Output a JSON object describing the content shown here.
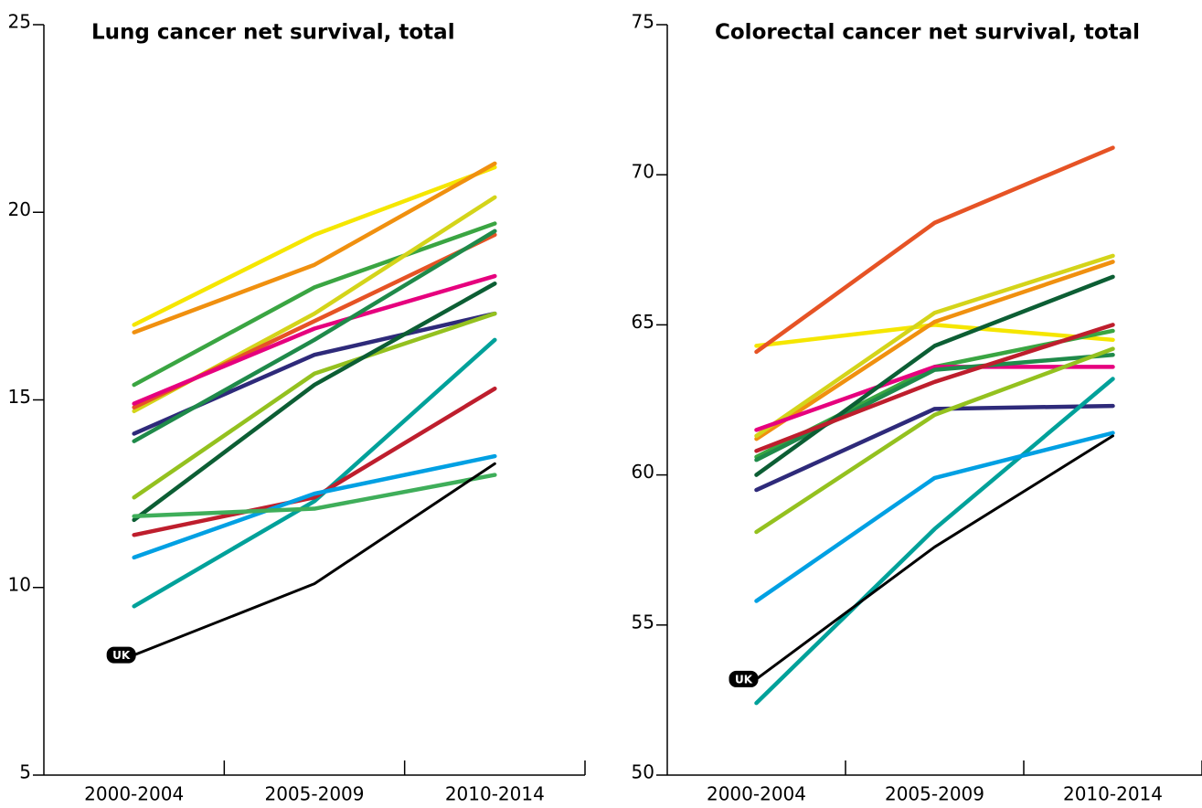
{
  "chart_data": [
    {
      "type": "line",
      "title": "Lung cancer net survival, total",
      "categories": [
        "2000-2004",
        "2005-2009",
        "2010-2014"
      ],
      "ylim": [
        5,
        25
      ],
      "yticks": [
        5,
        10,
        15,
        20,
        25
      ],
      "series": [
        {
          "color": "#f5e600",
          "values": [
            17.0,
            19.4,
            21.2
          ]
        },
        {
          "color": "#f0900f",
          "values": [
            16.8,
            18.6,
            21.3
          ]
        },
        {
          "color": "#3aa542",
          "values": [
            15.4,
            18.0,
            19.7
          ]
        },
        {
          "color": "#d4d41a",
          "values": [
            14.7,
            17.3,
            20.4
          ]
        },
        {
          "color": "#e65325",
          "values": [
            14.8,
            17.1,
            19.4
          ]
        },
        {
          "color": "#e6007e",
          "values": [
            14.9,
            16.9,
            18.3
          ]
        },
        {
          "color": "#2e2a7a",
          "values": [
            14.1,
            16.2,
            17.3
          ]
        },
        {
          "color": "#1f8a4a",
          "values": [
            13.9,
            16.6,
            19.5
          ]
        },
        {
          "color": "#94c11f",
          "values": [
            12.4,
            15.7,
            17.3
          ]
        },
        {
          "color": "#0c5e34",
          "values": [
            11.8,
            15.4,
            18.1
          ]
        },
        {
          "color": "#00a19a",
          "values": [
            9.5,
            12.3,
            16.6
          ]
        },
        {
          "color": "#be1e2d",
          "values": [
            11.4,
            12.4,
            15.3
          ]
        },
        {
          "color": "#00a0e3",
          "values": [
            10.8,
            12.5,
            13.5
          ]
        },
        {
          "color": "#3fae5a",
          "values": [
            11.9,
            12.1,
            13.0
          ]
        },
        {
          "name": "UK",
          "color": "#000000",
          "values": [
            8.2,
            10.1,
            13.3
          ]
        }
      ]
    },
    {
      "type": "line",
      "title": "Colorectal cancer net survival, total",
      "categories": [
        "2000-2004",
        "2005-2009",
        "2010-2014"
      ],
      "ylim": [
        50,
        75
      ],
      "yticks": [
        50,
        55,
        60,
        65,
        70,
        75
      ],
      "series": [
        {
          "color": "#f5e600",
          "values": [
            64.3,
            65.0,
            64.5
          ]
        },
        {
          "color": "#f0900f",
          "values": [
            61.2,
            65.1,
            67.1
          ]
        },
        {
          "color": "#3aa542",
          "values": [
            60.6,
            63.6,
            64.8
          ]
        },
        {
          "color": "#d4d41a",
          "values": [
            61.3,
            65.4,
            67.3
          ]
        },
        {
          "color": "#e65325",
          "values": [
            64.1,
            68.4,
            70.9
          ]
        },
        {
          "color": "#e6007e",
          "values": [
            61.5,
            63.6,
            63.6
          ]
        },
        {
          "color": "#2e2a7a",
          "values": [
            59.5,
            62.2,
            62.3
          ]
        },
        {
          "color": "#1f8a4a",
          "values": [
            60.5,
            63.5,
            64.0
          ]
        },
        {
          "color": "#94c11f",
          "values": [
            58.1,
            62.0,
            64.2
          ]
        },
        {
          "color": "#0c5e34",
          "values": [
            60.0,
            64.3,
            66.6
          ]
        },
        {
          "color": "#00a19a",
          "values": [
            52.4,
            58.2,
            63.2
          ]
        },
        {
          "color": "#be1e2d",
          "values": [
            60.8,
            63.1,
            65.0
          ]
        },
        {
          "color": "#00a0e3",
          "values": [
            55.8,
            59.9,
            61.4
          ]
        },
        {
          "name": "UK",
          "color": "#000000",
          "values": [
            53.2,
            57.6,
            61.3
          ]
        }
      ]
    }
  ]
}
